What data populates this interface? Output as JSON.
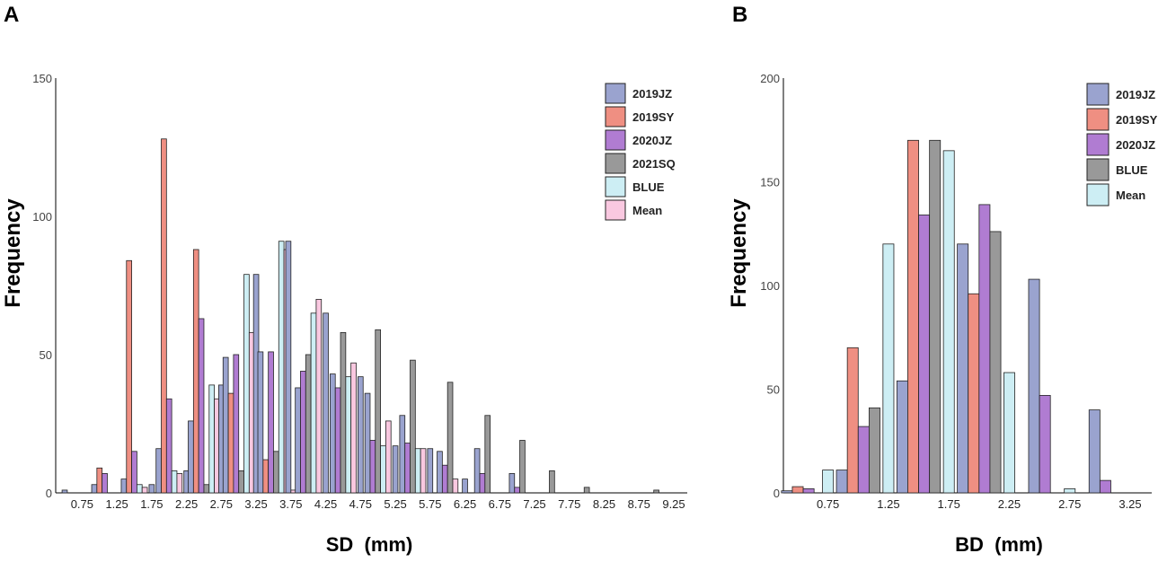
{
  "panels": [
    {
      "label": "A",
      "chart_data": {
        "type": "bar",
        "title": "",
        "xlabel": "SD  (mm)",
        "ylabel": "Frequency",
        "ylim": [
          0,
          150
        ],
        "yticks": [
          0,
          50,
          100,
          150
        ],
        "categories": [
          "0.50",
          "0.75",
          "1.00",
          "1.25",
          "1.50",
          "1.75",
          "2.00",
          "2.25",
          "2.50",
          "2.75",
          "3.00",
          "3.25",
          "3.50",
          "3.75",
          "4.00",
          "4.25",
          "4.50",
          "4.75",
          "5.00",
          "5.25",
          "5.50",
          "5.75",
          "6.00",
          "6.25",
          "6.50",
          "6.75",
          "7.00",
          "7.25",
          "7.50",
          "7.75",
          "8.00",
          "8.25",
          "8.50",
          "8.75",
          "9.00",
          "9.25"
        ],
        "tick_labels": [
          "0.75",
          "1.25",
          "1.75",
          "2.25",
          "2.75",
          "3.25",
          "3.75",
          "4.25",
          "4.75",
          "5.25",
          "5.75",
          "6.25",
          "6.75",
          "7.25",
          "7.75",
          "8.25",
          "8.75",
          "9.25"
        ],
        "series": [
          {
            "name": "2019JZ",
            "color": "#9aa3cf",
            "values": [
              1,
              0,
              3,
              0,
              5,
              3,
              16,
              8,
              26,
              39,
              49,
              79,
              51,
              91,
              38,
              65,
              43,
              42,
              36,
              17,
              28,
              16,
              15,
              5,
              16,
              0,
              7,
              0,
              0,
              0,
              0,
              0,
              0,
              0,
              0,
              0
            ]
          },
          {
            "name": "2019SY",
            "color": "#ef8f82",
            "values": [
              0,
              0,
              9,
              0,
              84,
              0,
              128,
              0,
              88,
              0,
              36,
              0,
              12,
              0,
              0,
              0,
              0,
              0,
              0,
              0,
              0,
              0,
              0,
              0,
              0,
              0,
              0,
              0,
              0,
              0,
              0,
              0,
              0,
              0,
              0,
              0
            ]
          },
          {
            "name": "2020JZ",
            "color": "#b07cd2",
            "values": [
              0,
              0,
              7,
              0,
              15,
              0,
              34,
              0,
              63,
              0,
              50,
              0,
              51,
              0,
              44,
              0,
              38,
              0,
              19,
              0,
              18,
              0,
              10,
              0,
              7,
              0,
              2,
              0,
              0,
              0,
              0,
              0,
              0,
              0,
              0,
              0
            ]
          },
          {
            "name": "2021SQ",
            "color": "#999999",
            "values": [
              0,
              0,
              0,
              0,
              0,
              0,
              0,
              0,
              3,
              0,
              8,
              0,
              15,
              0,
              50,
              0,
              58,
              0,
              59,
              0,
              48,
              0,
              40,
              0,
              28,
              0,
              19,
              0,
              8,
              0,
              2,
              0,
              0,
              0,
              1,
              0
            ]
          },
          {
            "name": "BLUE",
            "color": "#cdeef4",
            "values": [
              0,
              0,
              0,
              0,
              3,
              0,
              8,
              0,
              39,
              0,
              79,
              0,
              91,
              0,
              65,
              0,
              42,
              0,
              17,
              0,
              16,
              0,
              0,
              0,
              0,
              0,
              0,
              0,
              0,
              0,
              0,
              0,
              0,
              0,
              0,
              0
            ]
          },
          {
            "name": "Mean",
            "color": "#f9c8e0",
            "values": [
              0,
              0,
              0,
              0,
              2,
              0,
              7,
              0,
              34,
              0,
              58,
              0,
              88,
              1,
              70,
              0,
              47,
              0,
              26,
              0,
              16,
              0,
              5,
              0,
              0,
              0,
              0,
              0,
              0,
              0,
              0,
              0,
              0,
              0,
              0,
              0
            ]
          }
        ],
        "legend": "top-right"
      }
    },
    {
      "label": "B",
      "chart_data": {
        "type": "bar",
        "title": "",
        "xlabel": "BD  (mm)",
        "ylabel": "Frequency",
        "ylim": [
          0,
          200
        ],
        "yticks": [
          0,
          50,
          100,
          150,
          200
        ],
        "categories": [
          "0.625",
          "0.875",
          "1.125",
          "1.375",
          "1.625",
          "1.875",
          "2.125",
          "2.375",
          "2.625",
          "2.875",
          "3.125",
          "3.375"
        ],
        "tick_labels": [
          "0.75",
          "1.25",
          "1.75",
          "2.25",
          "2.75",
          "3.25"
        ],
        "series": [
          {
            "name": "2019JZ",
            "color": "#9aa3cf",
            "values": [
              1,
              0,
              11,
              0,
              54,
              0,
              120,
              0,
              103,
              0,
              40,
              0
            ]
          },
          {
            "name": "2019SY",
            "color": "#ef8f82",
            "values": [
              3,
              0,
              70,
              0,
              170,
              0,
              96,
              0,
              0,
              0,
              0,
              0
            ]
          },
          {
            "name": "2020JZ",
            "color": "#b07cd2",
            "values": [
              2,
              0,
              32,
              0,
              134,
              0,
              139,
              0,
              47,
              0,
              6,
              0
            ]
          },
          {
            "name": "BLUE",
            "color": "#999999",
            "values": [
              0,
              0,
              41,
              0,
              170,
              0,
              126,
              0,
              0,
              0,
              0,
              0
            ]
          },
          {
            "name": "Mean",
            "color": "#cdeef4",
            "values": [
              0,
              11,
              0,
              120,
              0,
              165,
              0,
              58,
              0,
              2,
              0,
              0
            ]
          }
        ],
        "legend": "top-right"
      }
    }
  ]
}
